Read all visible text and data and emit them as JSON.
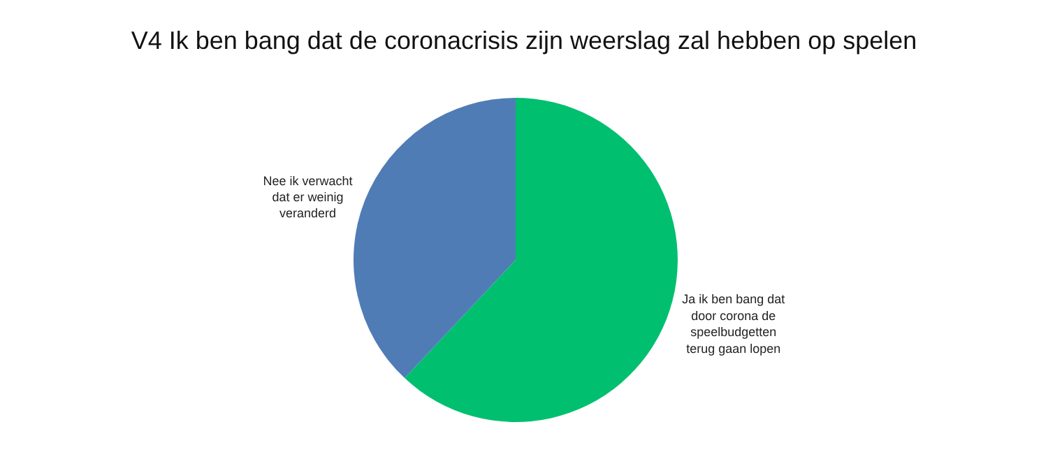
{
  "chart_data": {
    "type": "pie",
    "title": "V4 Ik ben bang dat de coronacrisis zijn weerslag zal hebben op spelen",
    "categories": [
      "Ja ik ben bang dat door corona de speelbudgetten terug gaan lopen",
      "Nee ik verwacht dat er weinig veranderd"
    ],
    "values": [
      62,
      38
    ],
    "colors": [
      "#00bf6f",
      "#507cb6"
    ],
    "legend": false
  }
}
